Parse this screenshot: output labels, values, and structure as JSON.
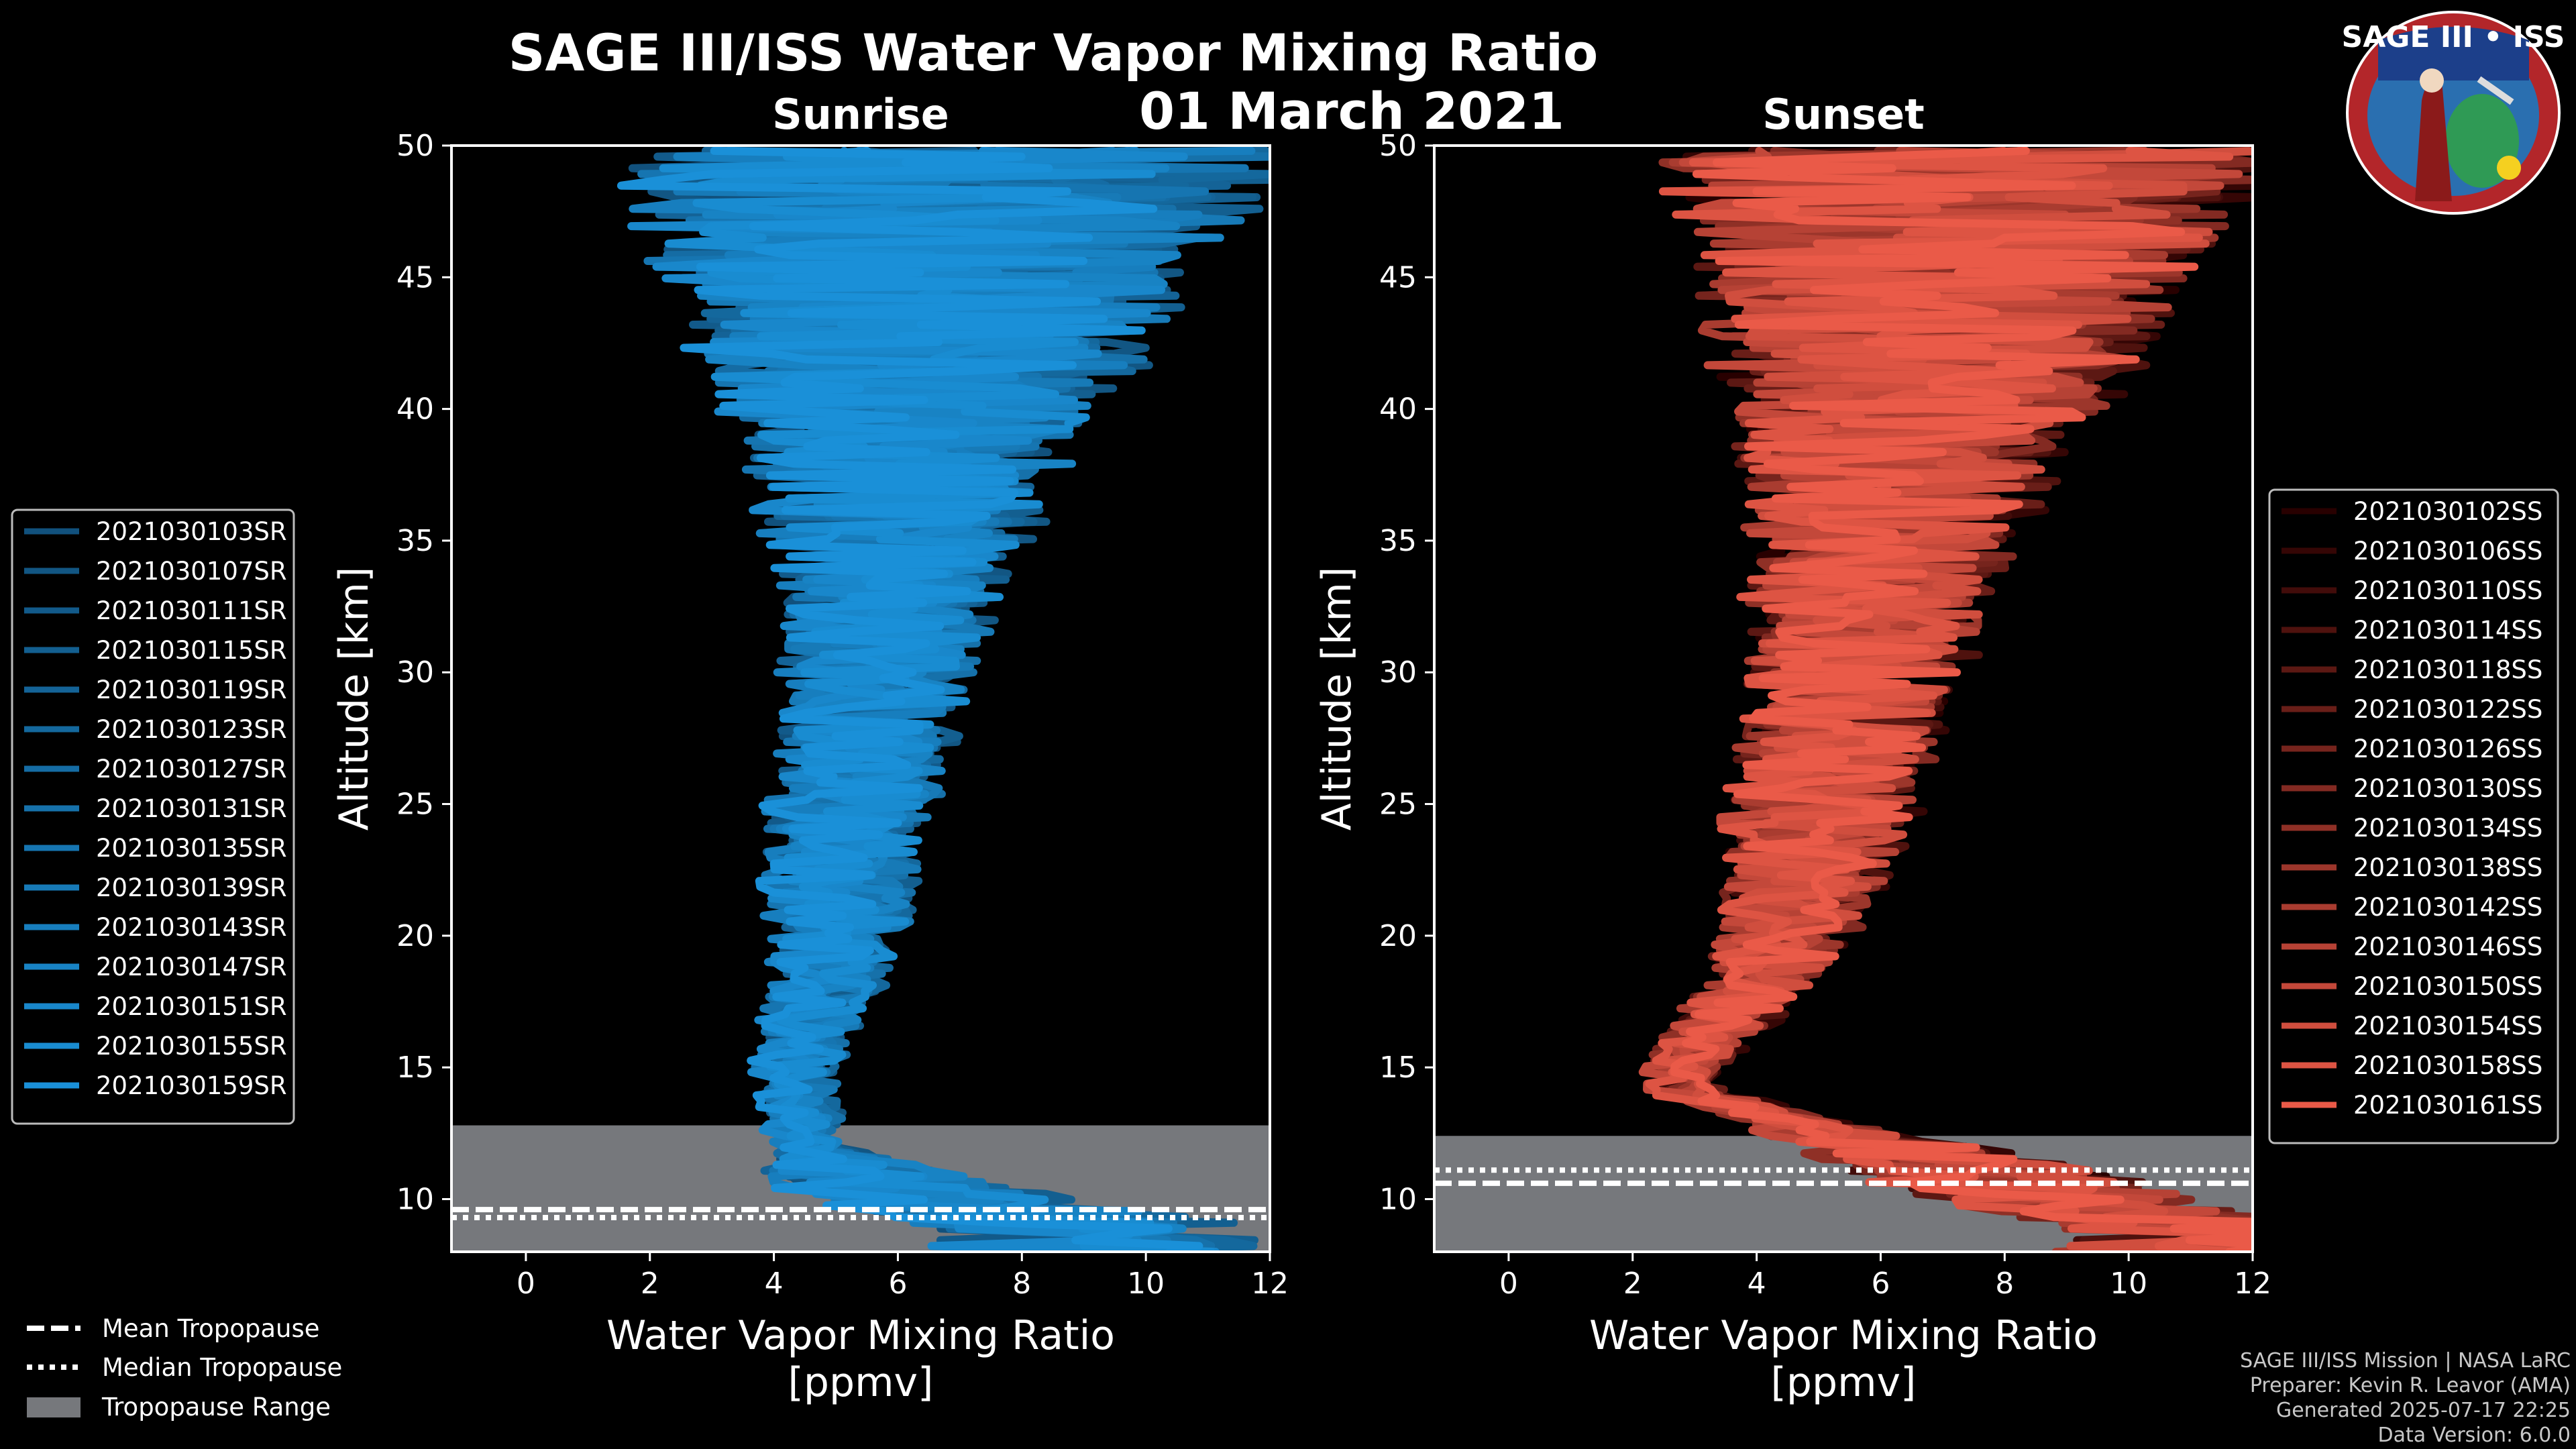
{
  "title": "SAGE III/ISS Water Vapor Mixing Ratio",
  "date": "01 March 2021",
  "colors": {
    "sunrise": "#1a90d8",
    "sunset": "#ea5a48",
    "background": "#000000",
    "tropopause_range": "#76787c"
  },
  "legend_bottom": {
    "mean": "Mean Tropopause",
    "median": "Median Tropopause",
    "range": "Tropopause Range"
  },
  "credits": [
    "SAGE III/ISS Mission | NASA LaRC",
    "Preparer: Kevin R. Leavor (AMA)",
    "Generated 2025-07-17 22:25",
    "Data Version: 6.0.0"
  ],
  "logo": {
    "text": "SAGE III • ISS",
    "icon": "sage-iii-iss-mission-patch"
  },
  "chart_data": [
    {
      "type": "line",
      "title": "Sunrise",
      "xlabel": "Water Vapor Mixing Ratio\n[ppmv]",
      "ylabel": "Altitude [km]",
      "xlim": [
        -1.2,
        12
      ],
      "ylim": [
        8,
        50
      ],
      "xticks": [
        0,
        2,
        4,
        6,
        8,
        10,
        12
      ],
      "yticks": [
        10,
        15,
        20,
        25,
        30,
        35,
        40,
        45,
        50
      ],
      "tropopause": {
        "mean_km": 9.6,
        "median_km": 9.3,
        "range_km": [
          8,
          12.8
        ]
      },
      "series_names": [
        "2021030103SR",
        "2021030107SR",
        "2021030111SR",
        "2021030115SR",
        "2021030119SR",
        "2021030123SR",
        "2021030127SR",
        "2021030131SR",
        "2021030135SR",
        "2021030139SR",
        "2021030143SR",
        "2021030147SR",
        "2021030151SR",
        "2021030155SR",
        "2021030159SR"
      ],
      "profile": {
        "altitude_km": [
          9,
          10,
          11,
          12,
          12.5,
          13,
          14,
          15,
          16,
          17,
          18,
          19,
          20,
          22,
          24,
          26,
          28,
          30,
          32,
          34,
          36,
          38,
          40,
          42,
          44,
          46,
          48,
          50
        ],
        "median_ppmv": [
          9.0,
          6.5,
          5.2,
          4.6,
          4.3,
          4.5,
          4.3,
          4.3,
          4.5,
          4.6,
          4.8,
          4.9,
          5.0,
          5.0,
          5.1,
          5.3,
          5.5,
          5.6,
          5.8,
          5.9,
          6.0,
          6.1,
          6.2,
          6.3,
          6.6,
          6.4,
          6.8,
          6.5
        ],
        "spread_ppmv": [
          2.5,
          2.0,
          1.5,
          0.4,
          0.4,
          0.5,
          0.5,
          0.6,
          0.6,
          0.7,
          0.8,
          0.9,
          1.0,
          1.1,
          1.2,
          1.3,
          1.4,
          1.5,
          1.6,
          1.8,
          2.2,
          2.6,
          3.0,
          3.6,
          4.0,
          4.5,
          5.0,
          5.5
        ]
      }
    },
    {
      "type": "line",
      "title": "Sunset",
      "xlabel": "Water Vapor Mixing Ratio\n[ppmv]",
      "ylabel": "Altitude [km]",
      "xlim": [
        -1.2,
        12
      ],
      "ylim": [
        8,
        50
      ],
      "xticks": [
        0,
        2,
        4,
        6,
        8,
        10,
        12
      ],
      "yticks": [
        10,
        15,
        20,
        25,
        30,
        35,
        40,
        45,
        50
      ],
      "tropopause": {
        "mean_km": 10.6,
        "median_km": 11.1,
        "range_km": [
          8,
          12.4
        ]
      },
      "series_names": [
        "2021030102SS",
        "2021030106SS",
        "2021030110SS",
        "2021030114SS",
        "2021030118SS",
        "2021030122SS",
        "2021030126SS",
        "2021030130SS",
        "2021030134SS",
        "2021030138SS",
        "2021030142SS",
        "2021030146SS",
        "2021030150SS",
        "2021030154SS",
        "2021030158SS",
        "2021030161SS"
      ],
      "profile": {
        "altitude_km": [
          9,
          10,
          11,
          12,
          13,
          14,
          15,
          16,
          17,
          18,
          19,
          20,
          22,
          24,
          26,
          28,
          30,
          32,
          34,
          36,
          38,
          40,
          42,
          44,
          46,
          48,
          50
        ],
        "median_ppmv": [
          11.0,
          9.0,
          7.5,
          6.0,
          4.5,
          3.0,
          2.8,
          3.2,
          3.6,
          4.0,
          4.3,
          4.5,
          4.8,
          5.0,
          5.2,
          5.4,
          5.6,
          5.8,
          6.0,
          6.2,
          6.4,
          6.6,
          6.8,
          7.0,
          7.2,
          7.4,
          7.5
        ],
        "spread_ppmv": [
          2.0,
          2.0,
          2.0,
          1.5,
          0.6,
          0.5,
          0.5,
          0.6,
          0.7,
          0.8,
          0.9,
          1.0,
          1.2,
          1.4,
          1.5,
          1.6,
          1.7,
          1.8,
          2.0,
          2.2,
          2.6,
          3.0,
          3.4,
          3.8,
          4.2,
          4.6,
          5.0
        ]
      }
    }
  ]
}
